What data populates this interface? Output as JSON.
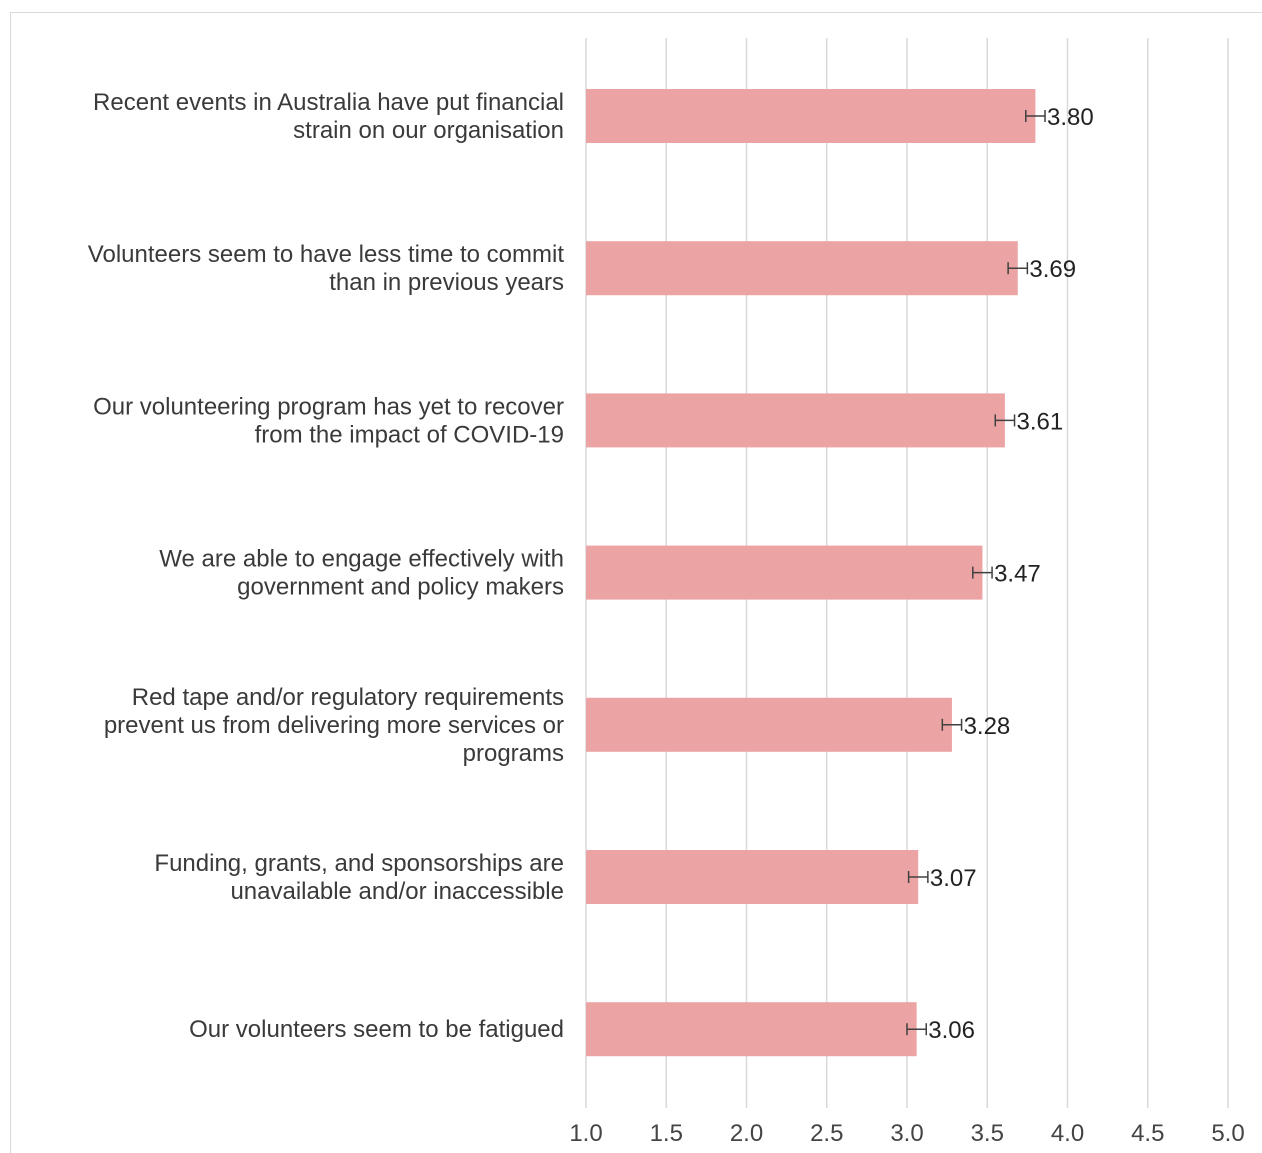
{
  "chart_data": {
    "type": "bar",
    "orientation": "horizontal",
    "categories": [
      [
        "Recent events in Australia have put financial",
        "strain on our organisation"
      ],
      [
        "Volunteers seem to have less time to commit",
        "than in previous years"
      ],
      [
        "Our volunteering program has yet to recover",
        "from the impact of COVID-19"
      ],
      [
        "We are able to engage effectively with",
        "government and policy makers"
      ],
      [
        "Red tape and/or regulatory requirements",
        "prevent us from delivering more services or",
        "programs"
      ],
      [
        "Funding, grants, and sponsorships are",
        "unavailable and/or inaccessible"
      ],
      [
        "Our volunteers seem to be fatigued"
      ]
    ],
    "values": [
      3.8,
      3.69,
      3.61,
      3.47,
      3.28,
      3.07,
      3.06
    ],
    "value_labels": [
      "3.80",
      "3.69",
      "3.61",
      "3.47",
      "3.28",
      "3.07",
      "3.06"
    ],
    "error_bars": [
      0.06,
      0.06,
      0.06,
      0.06,
      0.06,
      0.06,
      0.06
    ],
    "xlim": [
      1.0,
      5.0
    ],
    "x_ticks": [
      "1.0",
      "1.5",
      "2.0",
      "2.5",
      "3.0",
      "3.5",
      "4.0",
      "4.5",
      "5.0"
    ],
    "title": "",
    "xlabel": "",
    "ylabel": "",
    "grid": true,
    "colors": {
      "bar": "#eca3a3",
      "grid": "#d9d9d9",
      "error_bar": "#404040"
    }
  }
}
